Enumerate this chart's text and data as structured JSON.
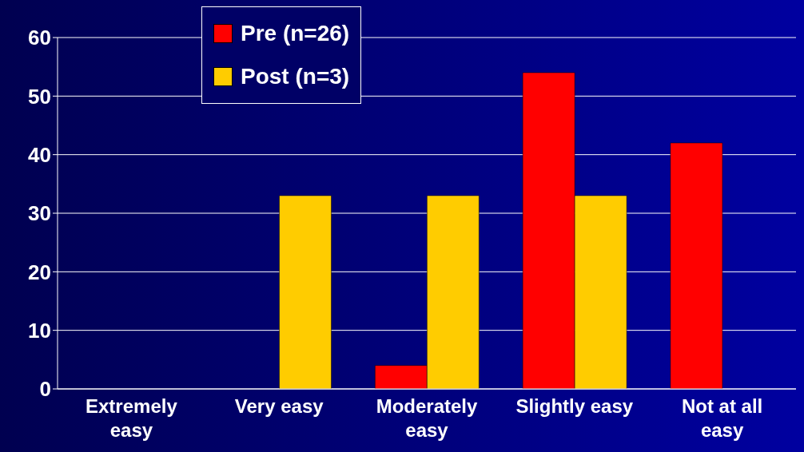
{
  "chart_data": {
    "type": "bar",
    "categories": [
      "Extremely easy",
      "Very easy",
      "Moderately easy",
      "Slightly easy",
      "Not at all easy"
    ],
    "series": [
      {
        "name": "Pre (n=26)",
        "color": "#ff0000",
        "values": [
          0,
          0,
          4,
          54,
          42
        ]
      },
      {
        "name": "Post (n=3)",
        "color": "#ffcc00",
        "values": [
          0,
          33,
          33,
          33,
          0
        ]
      }
    ],
    "ylim": [
      0,
      60
    ],
    "yticks": [
      0,
      10,
      20,
      30,
      40,
      50,
      60
    ],
    "grid": "y",
    "legend": "top"
  }
}
